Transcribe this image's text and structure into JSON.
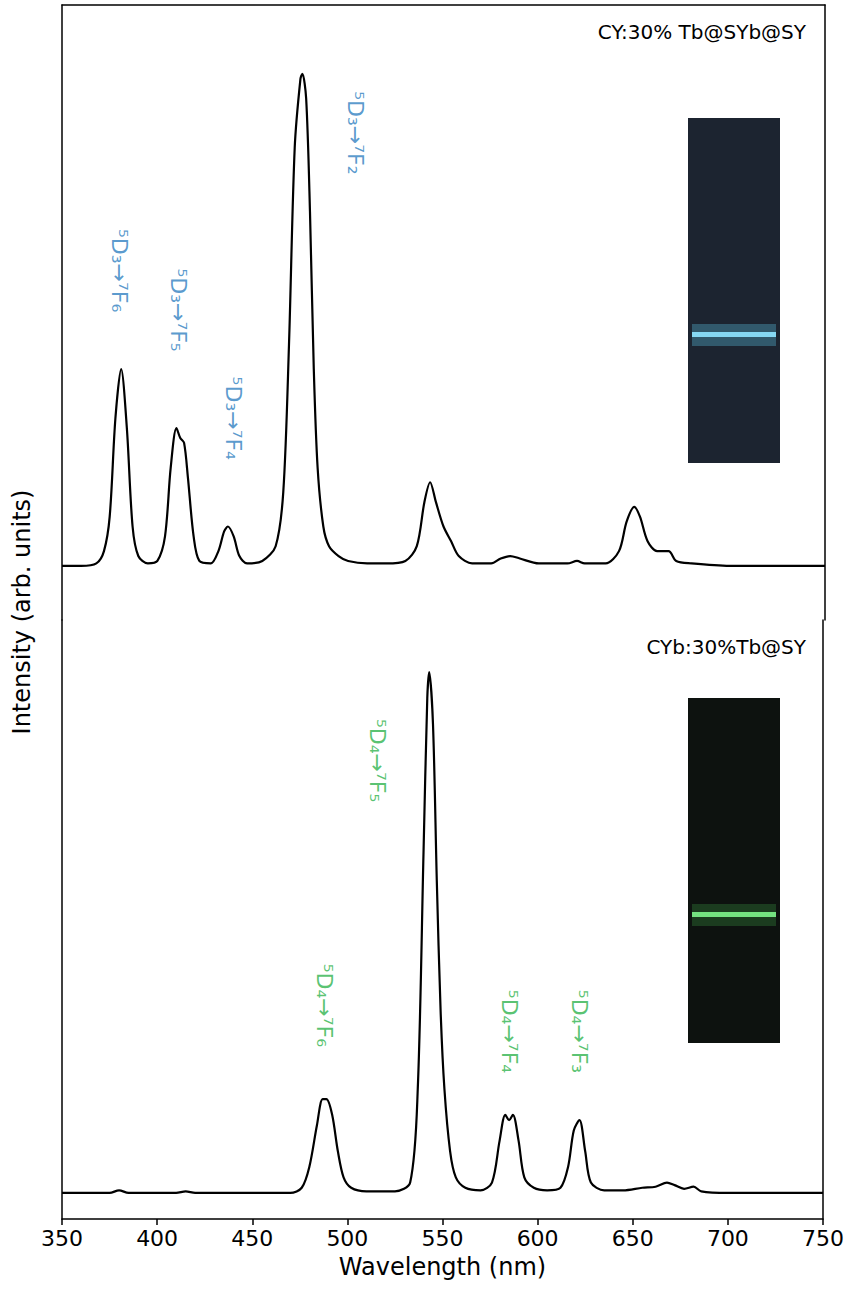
{
  "chart_data": [
    {
      "type": "line",
      "title": "CY:30% Tb@SYb@SY",
      "ylabel": "Intensity (arb. units)",
      "color": "#000000",
      "grid": false,
      "tick_labels": false,
      "xlim": [
        350,
        750
      ],
      "ylim": [
        -0.11,
        1.14
      ],
      "x": [
        350,
        360,
        368,
        372,
        375,
        378,
        381,
        384,
        387,
        390,
        395,
        400,
        404,
        407,
        410,
        412,
        414,
        416,
        419,
        422,
        428,
        432,
        435,
        437,
        440,
        443,
        447,
        455,
        462,
        466,
        469,
        472,
        475,
        476,
        478,
        480,
        482,
        484,
        487,
        490,
        495,
        500,
        510,
        520,
        530,
        536,
        540,
        543,
        546,
        550,
        554,
        558,
        565,
        575,
        580,
        585,
        590,
        600,
        615,
        620,
        624,
        635,
        642,
        646,
        650,
        653,
        657,
        662,
        668,
        672,
        680,
        700,
        750
      ],
      "values": [
        0,
        0,
        0.005,
        0.03,
        0.1,
        0.3,
        0.4,
        0.28,
        0.08,
        0.02,
        0.005,
        0.01,
        0.06,
        0.2,
        0.28,
        0.26,
        0.25,
        0.18,
        0.06,
        0.01,
        0.005,
        0.03,
        0.07,
        0.08,
        0.06,
        0.02,
        0.005,
        0.01,
        0.04,
        0.15,
        0.45,
        0.85,
        0.99,
        1.0,
        0.95,
        0.72,
        0.4,
        0.2,
        0.08,
        0.04,
        0.02,
        0.01,
        0.005,
        0.005,
        0.01,
        0.04,
        0.13,
        0.17,
        0.13,
        0.08,
        0.05,
        0.02,
        0.005,
        0.005,
        0.015,
        0.02,
        0.015,
        0.005,
        0.005,
        0.01,
        0.005,
        0.005,
        0.03,
        0.09,
        0.12,
        0.1,
        0.05,
        0.03,
        0.03,
        0.01,
        0.005,
        0,
        0
      ],
      "annotations": [
        {
          "text": "⁵D₃→⁷F₆",
          "x": 380,
          "y": 0.6,
          "color": "#2f7fc1"
        },
        {
          "text": "⁵D₃→⁷F₅",
          "x": 411,
          "y": 0.52,
          "color": "#2f7fc1"
        },
        {
          "text": "⁵D₃→⁷F₄",
          "x": 440,
          "y": 0.3,
          "color": "#2f7fc1"
        },
        {
          "text": "⁵D₃→⁷F₂",
          "x": 504,
          "y": 0.88,
          "color": "#2f7fc1"
        }
      ]
    },
    {
      "type": "line",
      "title": "CYb:30%Tb@SY",
      "xlabel": "Wavelength (nm)",
      "color": "#000000",
      "grid": false,
      "tick_labels": "x",
      "xlim": [
        350,
        750
      ],
      "xticks": [
        350,
        400,
        450,
        500,
        550,
        600,
        650,
        700,
        750
      ],
      "ylim": [
        -0.05,
        1.1
      ],
      "x": [
        350,
        375,
        380,
        385,
        410,
        415,
        420,
        470,
        476,
        480,
        484,
        487,
        489,
        492,
        495,
        498,
        502,
        510,
        525,
        533,
        537,
        540,
        542,
        543,
        545,
        547,
        549,
        551,
        554,
        557,
        562,
        570,
        576,
        580,
        583,
        585,
        587,
        590,
        593,
        598,
        605,
        612,
        616,
        619,
        622,
        625,
        628,
        635,
        645,
        655,
        662,
        668,
        672,
        677,
        682,
        686,
        700,
        750
      ],
      "values": [
        0,
        0,
        0.005,
        0,
        0,
        0.003,
        0,
        0,
        0.01,
        0.05,
        0.13,
        0.18,
        0.18,
        0.15,
        0.08,
        0.03,
        0.01,
        0.003,
        0.003,
        0.02,
        0.2,
        0.65,
        0.95,
        1.0,
        0.9,
        0.6,
        0.35,
        0.2,
        0.08,
        0.03,
        0.01,
        0.005,
        0.02,
        0.1,
        0.15,
        0.14,
        0.15,
        0.1,
        0.03,
        0.01,
        0.005,
        0.01,
        0.05,
        0.12,
        0.14,
        0.08,
        0.02,
        0.005,
        0.005,
        0.01,
        0.012,
        0.02,
        0.015,
        0.008,
        0.012,
        0.003,
        0,
        0
      ],
      "annotations": [
        {
          "text": "⁵D₄→⁷F₆",
          "x": 488,
          "y": 0.36,
          "color": "#2eb34c"
        },
        {
          "text": "⁵D₄→⁷F₅",
          "x": 516,
          "y": 0.83,
          "color": "#2eb34c"
        },
        {
          "text": "⁵D₄→⁷F₄",
          "x": 585,
          "y": 0.31,
          "color": "#2eb34c"
        },
        {
          "text": "⁵D₄→⁷F₃",
          "x": 622,
          "y": 0.31,
          "color": "#2eb34c"
        }
      ]
    }
  ]
}
